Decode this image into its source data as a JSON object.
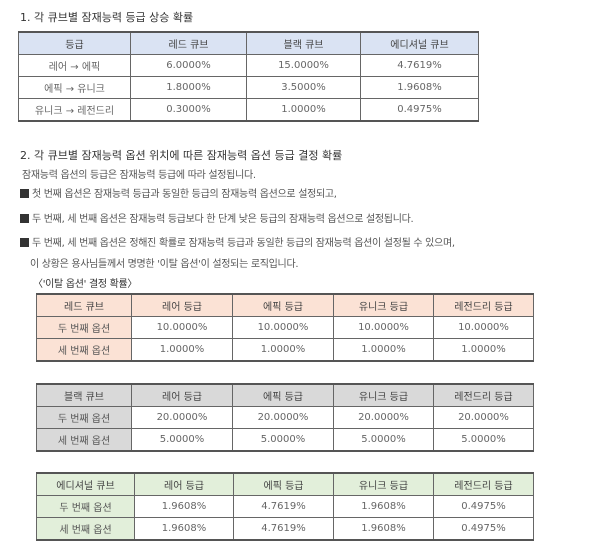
{
  "section1": {
    "title": "1. 각 큐브별 잠재능력 등급 상승 확률",
    "headers": [
      "등급",
      "레드 큐브",
      "블랙 큐브",
      "에디셔널 큐브"
    ],
    "rows": [
      [
        "레어 → 에픽",
        "6.0000%",
        "15.0000%",
        "4.7619%"
      ],
      [
        "에픽 → 유니크",
        "1.8000%",
        "3.5000%",
        "1.9608%"
      ],
      [
        "유니크 → 레전드리",
        "0.3000%",
        "1.0000%",
        "0.4975%"
      ]
    ]
  },
  "section2": {
    "title": "2. 각 큐브별 잠재능력 옵션 위치에 따른 잠재능력 옵션 등급 결정 확률",
    "intro": "잠재능력 옵션의 등급은 잠재능력 등급에 따라 설정됩니다.",
    "bullets": [
      "첫 번째 옵션은 잠재능력 등급과 동일한 등급의 잠재능력 옵션으로 설정되고,",
      "두 번째, 세 번째 옵션은 잠재능력 등급보다 한 단계 낮은 등급의 잠재능력 옵션으로 설정됩니다.",
      "두 번째, 세 번째 옵션은 정해진 확률로 잠재능력 등급과 동일한 등급의 잠재능력 옵션이 설정될 수 있으며,"
    ],
    "continuation": "이 상황은 용사님들께서 명명한 '이탈 옵션'이 설정되는 로직입니다.",
    "subtitle": "〈'이탈 옵션' 결정 확률〉",
    "tables": [
      {
        "headers": [
          "레드 큐브",
          "레어 등급",
          "에픽 등급",
          "유니크 등급",
          "레전드리 등급"
        ],
        "rows": [
          [
            "두 번째 옵션",
            "10.0000%",
            "10.0000%",
            "10.0000%",
            "10.0000%"
          ],
          [
            "세 번째 옵션",
            "1.0000%",
            "1.0000%",
            "1.0000%",
            "1.0000%"
          ]
        ]
      },
      {
        "headers": [
          "블랙 큐브",
          "레어 등급",
          "에픽 등급",
          "유니크 등급",
          "레전드리 등급"
        ],
        "rows": [
          [
            "두 번째 옵션",
            "20.0000%",
            "20.0000%",
            "20.0000%",
            "20.0000%"
          ],
          [
            "세 번째 옵션",
            "5.0000%",
            "5.0000%",
            "5.0000%",
            "5.0000%"
          ]
        ]
      },
      {
        "headers": [
          "에디셔널 큐브",
          "레어 등급",
          "에픽 등급",
          "유니크 등급",
          "레전드리 등급"
        ],
        "rows": [
          [
            "두 번째 옵션",
            "1.9608%",
            "4.7619%",
            "1.9608%",
            "0.4975%"
          ],
          [
            "세 번째 옵션",
            "1.9608%",
            "4.7619%",
            "1.9608%",
            "0.4975%"
          ]
        ]
      }
    ]
  }
}
